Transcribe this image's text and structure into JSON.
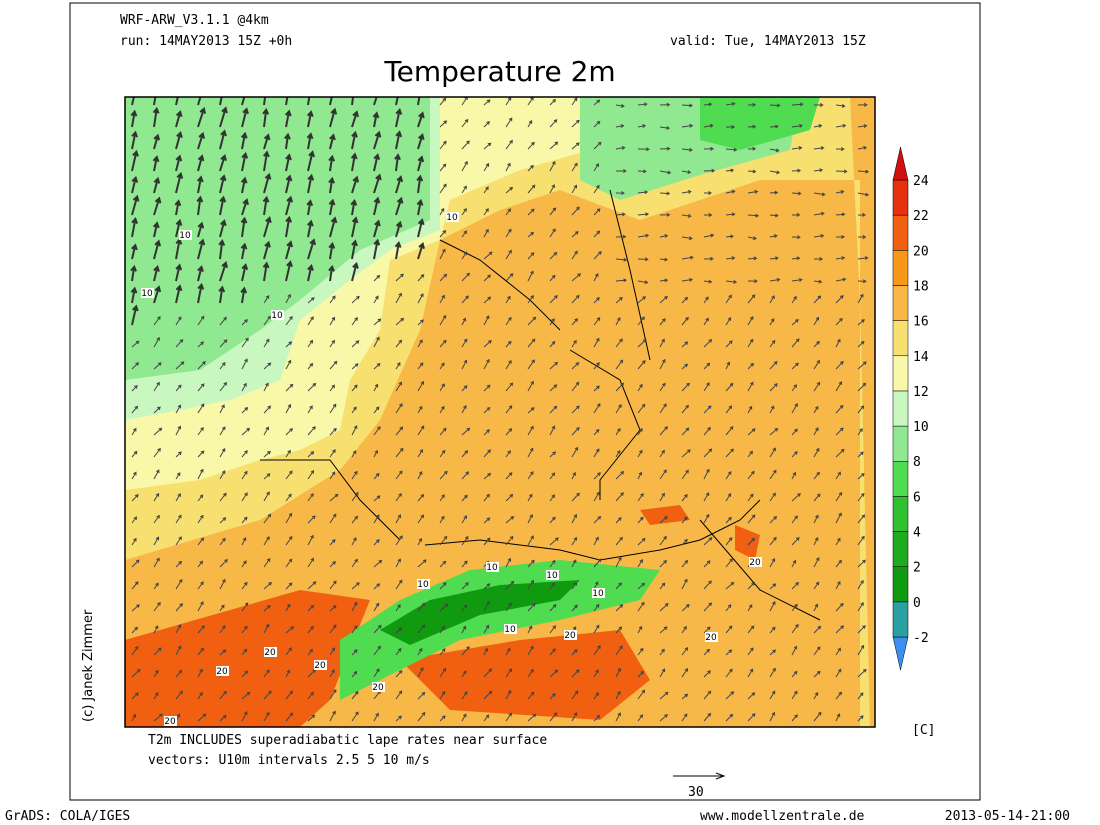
{
  "header": {
    "model": "WRF-ARW_V3.1.1 @4km",
    "run": "run: 14MAY2013 15Z +0h",
    "valid": "valid: Tue, 14MAY2013 15Z",
    "title": "Temperature 2m"
  },
  "notes": {
    "line1": "T2m INCLUDES superadiabatic lape rates near surface",
    "line2": "vectors: U10m intervals 2.5 5 10 m/s",
    "vector_scale": "30",
    "copyright": "(c) Janek Zimmer"
  },
  "legend": {
    "unit": "[C]",
    "ticks": [
      -2,
      0,
      2,
      4,
      6,
      8,
      10,
      12,
      14,
      16,
      18,
      20,
      22,
      24
    ],
    "colors": [
      "#3c8ff0",
      "#2aa0a0",
      "#109a10",
      "#20aa20",
      "#30c030",
      "#50dc50",
      "#90e890",
      "#c8f8c0",
      "#f8f8a8",
      "#f8e070",
      "#f8b848",
      "#f89818",
      "#f06010",
      "#e63010",
      "#d01010"
    ]
  },
  "contour_labels": [
    10,
    10,
    10,
    10,
    10,
    10,
    10,
    10,
    10,
    20,
    20,
    20,
    20,
    20,
    20,
    20,
    20
  ],
  "footer": {
    "software": "GrADS: COLA/IGES",
    "site": "www.modellzentrale.de",
    "timestamp": "2013-05-14-21:00"
  }
}
